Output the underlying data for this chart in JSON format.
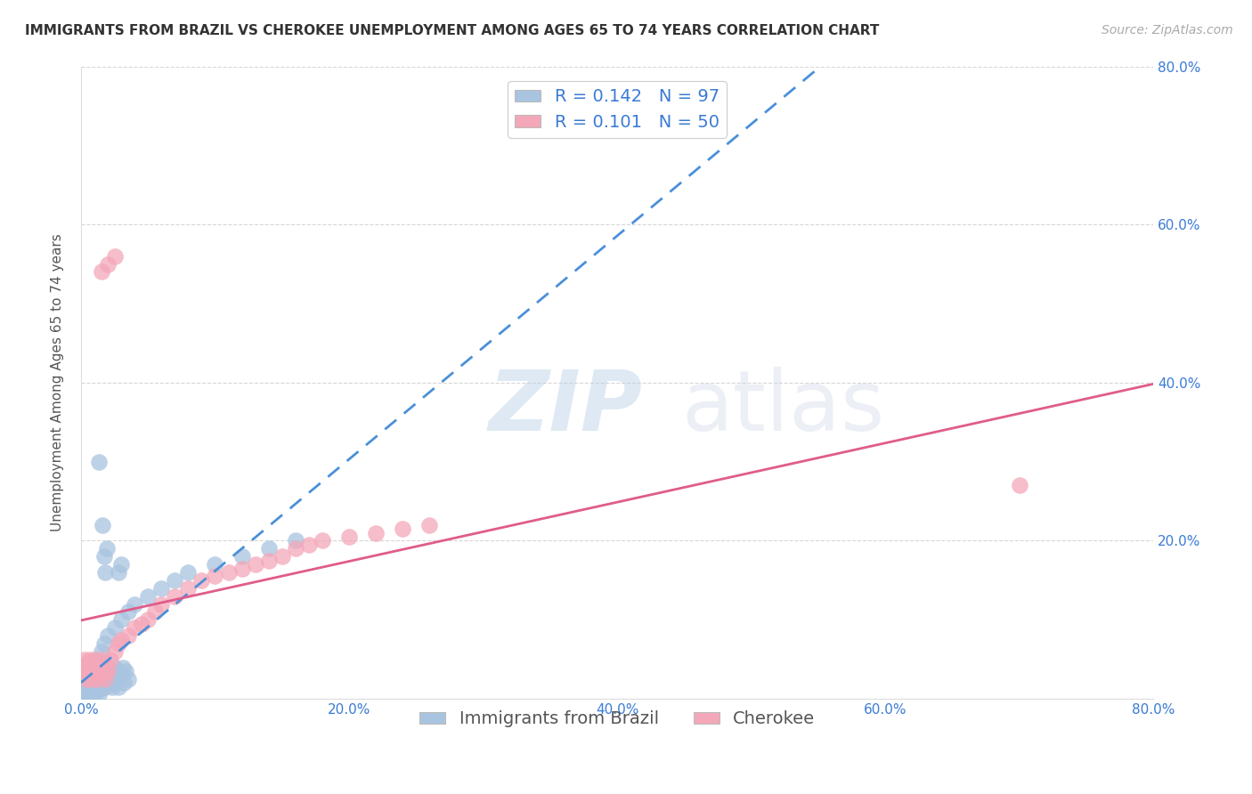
{
  "title": "IMMIGRANTS FROM BRAZIL VS CHEROKEE UNEMPLOYMENT AMONG AGES 65 TO 74 YEARS CORRELATION CHART",
  "source": "Source: ZipAtlas.com",
  "ylabel": "Unemployment Among Ages 65 to 74 years",
  "xlabel_brazil": "Immigrants from Brazil",
  "xlabel_cherokee": "Cherokee",
  "xlim": [
    0,
    0.8
  ],
  "ylim": [
    0,
    0.8
  ],
  "xticks": [
    0.0,
    0.2,
    0.4,
    0.6,
    0.8
  ],
  "yticks": [
    0.0,
    0.2,
    0.4,
    0.6,
    0.8
  ],
  "xtick_labels": [
    "0.0%",
    "20.0%",
    "40.0%",
    "60.0%",
    "80.0%"
  ],
  "right_ytick_labels": [
    "80.0%",
    "60.0%",
    "40.0%",
    "20.0%"
  ],
  "brazil_color": "#a8c4e0",
  "cherokee_color": "#f4a7b9",
  "brazil_line_color": "#4a90d9",
  "cherokee_line_color": "#e05c8a",
  "brazil_R": 0.142,
  "brazil_N": 97,
  "cherokee_R": 0.101,
  "cherokee_N": 50,
  "legend_color": "#3a7bd5",
  "watermark_zip": "ZIP",
  "watermark_atlas": "atlas",
  "background_color": "#ffffff",
  "grid_color": "#cccccc",
  "title_fontsize": 11,
  "source_fontsize": 10,
  "axis_label_fontsize": 11,
  "tick_fontsize": 11,
  "legend_fontsize": 14,
  "watermark_fontsize_zip": 68,
  "watermark_fontsize_atlas": 68,
  "brazil_x": [
    0.002,
    0.003,
    0.004,
    0.005,
    0.005,
    0.006,
    0.006,
    0.007,
    0.007,
    0.008,
    0.008,
    0.009,
    0.009,
    0.01,
    0.01,
    0.01,
    0.011,
    0.011,
    0.012,
    0.012,
    0.013,
    0.013,
    0.014,
    0.014,
    0.015,
    0.015,
    0.016,
    0.016,
    0.017,
    0.017,
    0.018,
    0.018,
    0.019,
    0.02,
    0.02,
    0.021,
    0.022,
    0.022,
    0.023,
    0.024,
    0.025,
    0.025,
    0.026,
    0.027,
    0.028,
    0.03,
    0.031,
    0.032,
    0.033,
    0.035,
    0.001,
    0.002,
    0.003,
    0.004,
    0.005,
    0.006,
    0.007,
    0.008,
    0.009,
    0.01,
    0.011,
    0.012,
    0.013,
    0.014,
    0.015,
    0.003,
    0.004,
    0.005,
    0.006,
    0.007,
    0.008,
    0.009,
    0.01,
    0.011,
    0.012,
    0.015,
    0.017,
    0.02,
    0.025,
    0.03,
    0.035,
    0.04,
    0.05,
    0.06,
    0.07,
    0.08,
    0.1,
    0.12,
    0.14,
    0.16,
    0.013,
    0.016,
    0.017,
    0.018,
    0.019,
    0.028,
    0.03
  ],
  "brazil_y": [
    0.03,
    0.025,
    0.02,
    0.04,
    0.015,
    0.035,
    0.01,
    0.03,
    0.02,
    0.04,
    0.025,
    0.015,
    0.035,
    0.02,
    0.04,
    0.01,
    0.03,
    0.02,
    0.035,
    0.015,
    0.025,
    0.04,
    0.015,
    0.03,
    0.02,
    0.04,
    0.025,
    0.015,
    0.03,
    0.02,
    0.035,
    0.015,
    0.025,
    0.03,
    0.04,
    0.02,
    0.025,
    0.035,
    0.015,
    0.03,
    0.04,
    0.02,
    0.025,
    0.035,
    0.015,
    0.03,
    0.04,
    0.02,
    0.035,
    0.025,
    0.005,
    0.008,
    0.012,
    0.006,
    0.01,
    0.015,
    0.008,
    0.012,
    0.018,
    0.005,
    0.01,
    0.015,
    0.006,
    0.012,
    0.018,
    0.005,
    0.008,
    0.012,
    0.006,
    0.01,
    0.015,
    0.008,
    0.012,
    0.018,
    0.05,
    0.06,
    0.07,
    0.08,
    0.09,
    0.1,
    0.11,
    0.12,
    0.13,
    0.14,
    0.15,
    0.16,
    0.17,
    0.18,
    0.19,
    0.2,
    0.3,
    0.22,
    0.18,
    0.16,
    0.19,
    0.16,
    0.17
  ],
  "cherokee_x": [
    0.001,
    0.002,
    0.003,
    0.004,
    0.005,
    0.006,
    0.007,
    0.008,
    0.009,
    0.01,
    0.011,
    0.012,
    0.013,
    0.014,
    0.015,
    0.016,
    0.017,
    0.018,
    0.019,
    0.02,
    0.022,
    0.025,
    0.028,
    0.03,
    0.035,
    0.04,
    0.045,
    0.05,
    0.055,
    0.06,
    0.07,
    0.08,
    0.09,
    0.1,
    0.11,
    0.12,
    0.13,
    0.14,
    0.15,
    0.16,
    0.17,
    0.18,
    0.2,
    0.22,
    0.24,
    0.26,
    0.015,
    0.02,
    0.025,
    0.7
  ],
  "cherokee_y": [
    0.04,
    0.03,
    0.05,
    0.025,
    0.045,
    0.035,
    0.05,
    0.025,
    0.04,
    0.03,
    0.05,
    0.025,
    0.04,
    0.035,
    0.05,
    0.03,
    0.045,
    0.025,
    0.04,
    0.035,
    0.05,
    0.06,
    0.07,
    0.075,
    0.08,
    0.09,
    0.095,
    0.1,
    0.11,
    0.12,
    0.13,
    0.14,
    0.15,
    0.155,
    0.16,
    0.165,
    0.17,
    0.175,
    0.18,
    0.19,
    0.195,
    0.2,
    0.205,
    0.21,
    0.215,
    0.22,
    0.54,
    0.55,
    0.56,
    0.27
  ]
}
